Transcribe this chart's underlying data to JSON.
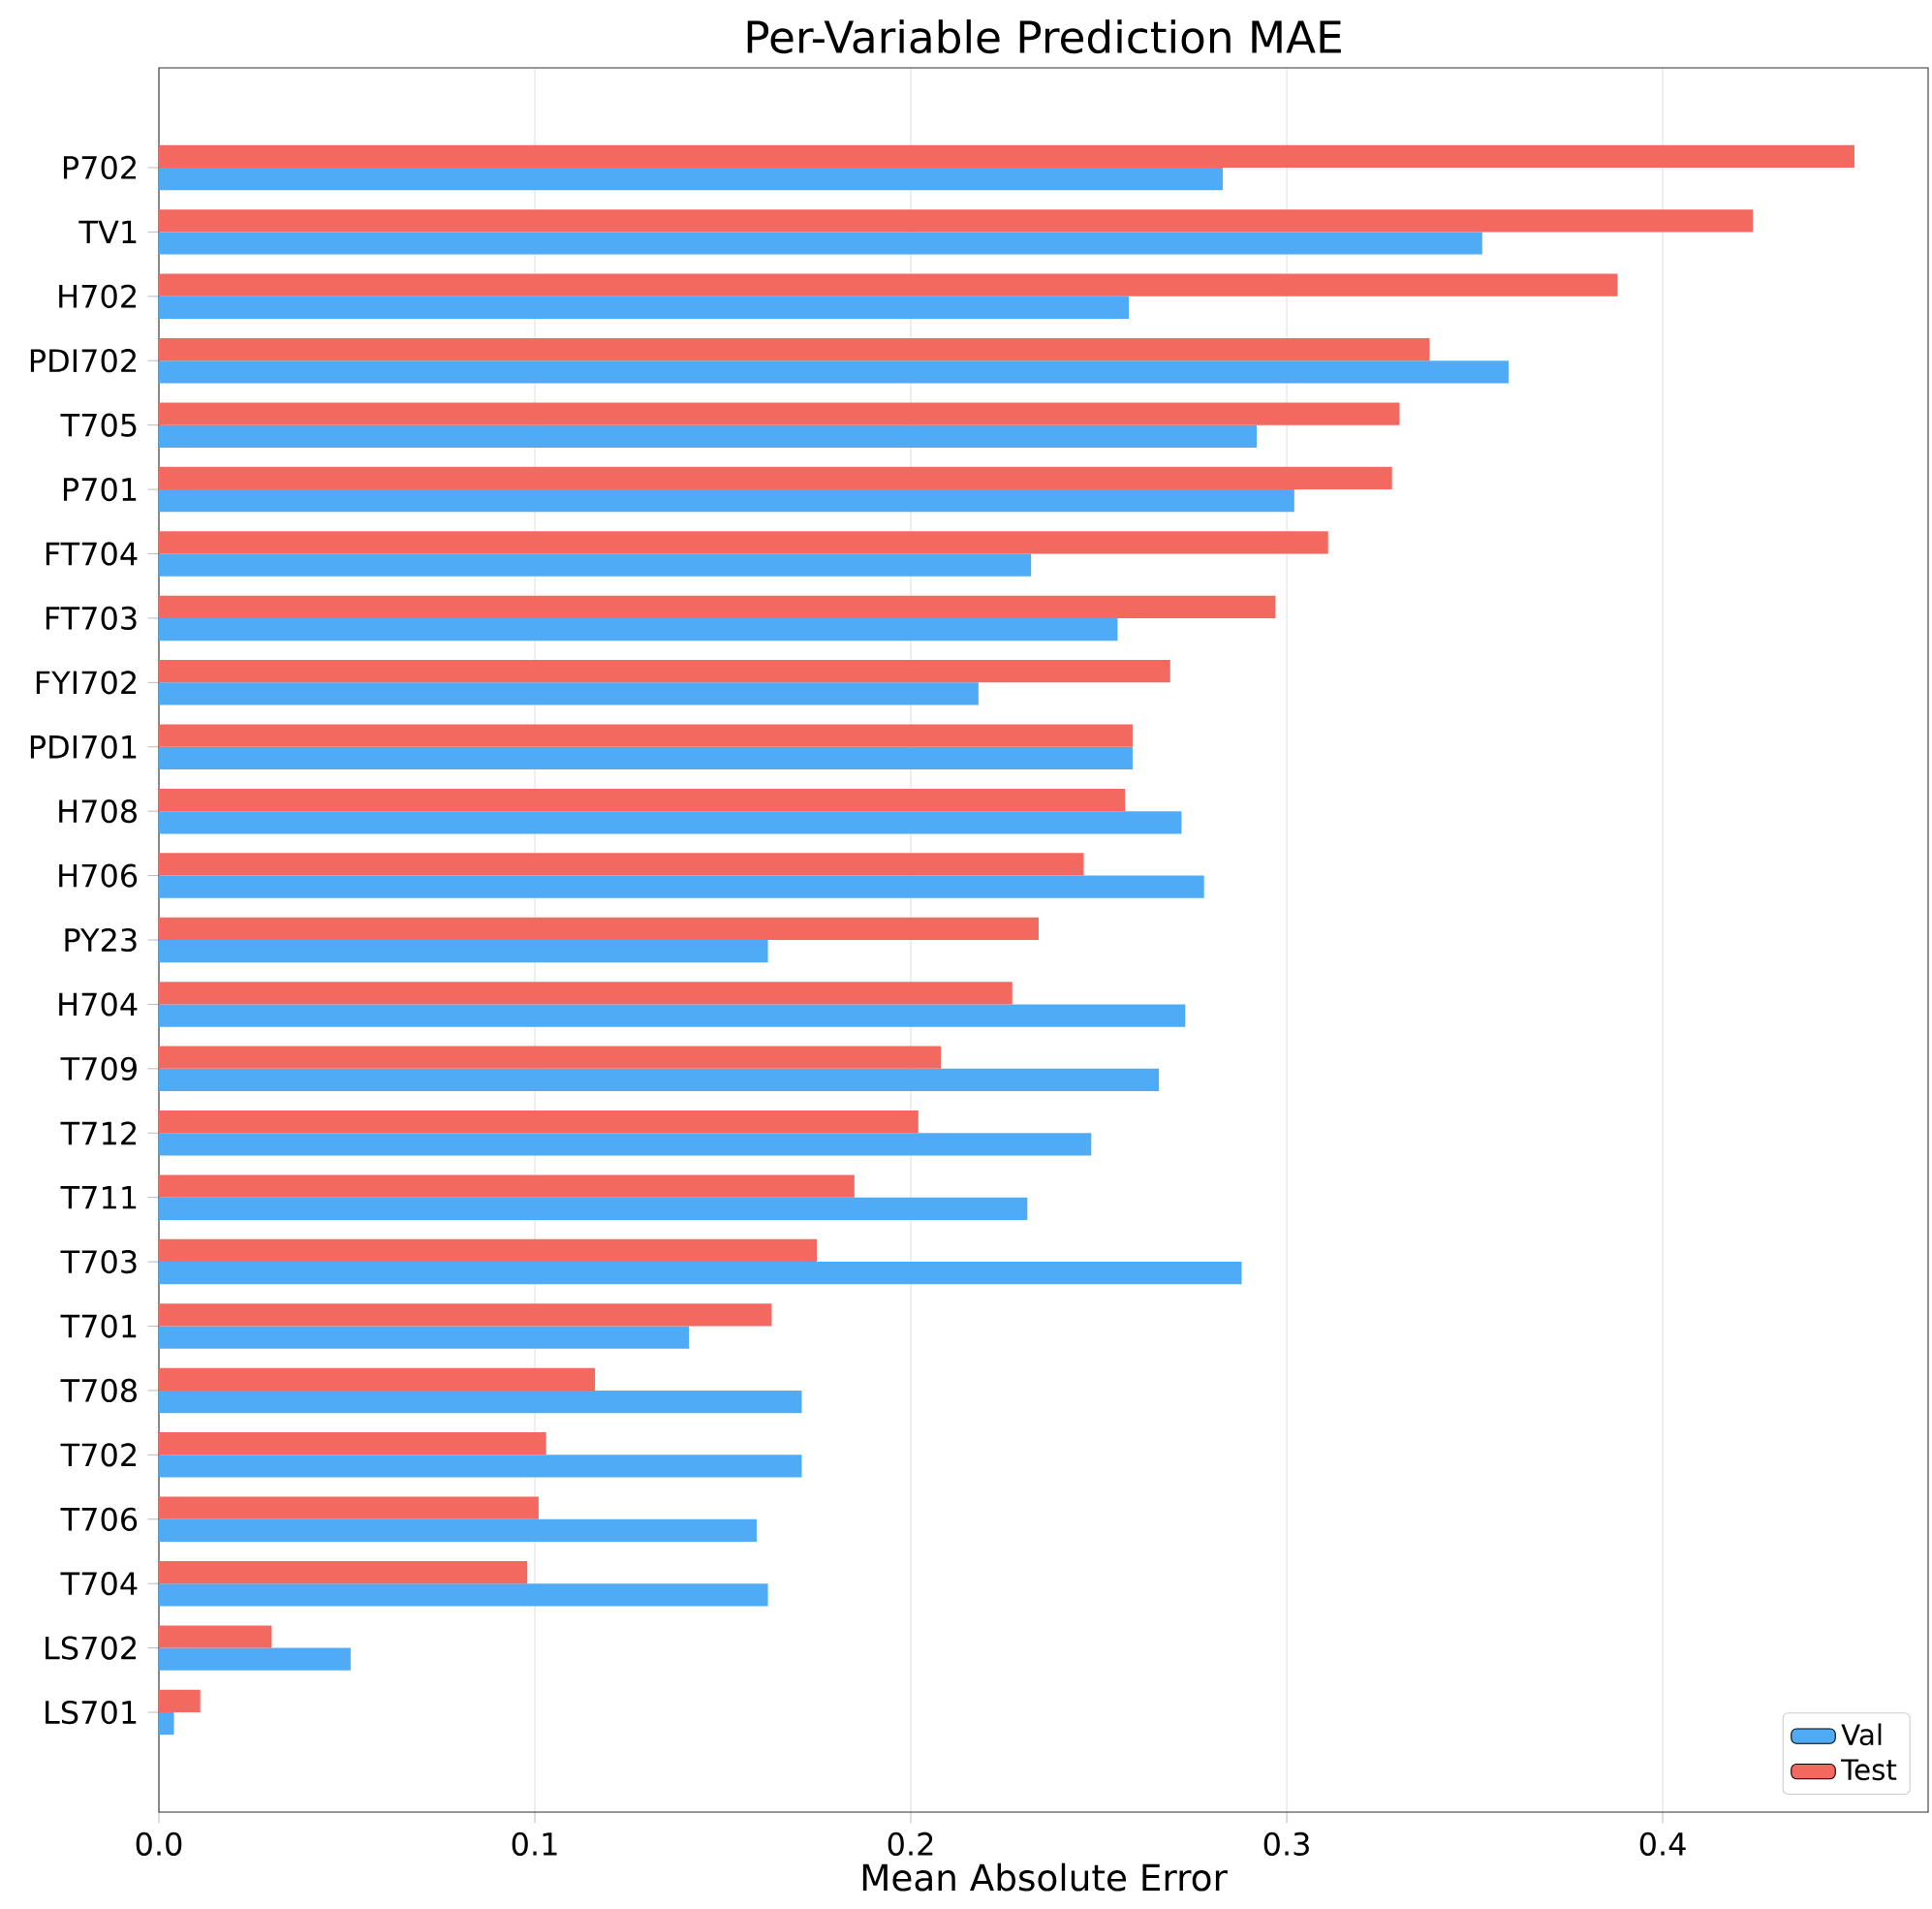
{
  "chart_data": {
    "type": "bar",
    "orientation": "horizontal",
    "title": "Per-Variable Prediction MAE",
    "xlabel": "Mean Absolute Error",
    "categories": [
      "P702",
      "TV1",
      "H702",
      "PDI702",
      "T705",
      "P701",
      "FT704",
      "FT703",
      "FYI702",
      "PDI701",
      "H708",
      "H706",
      "PY23",
      "H704",
      "T709",
      "T712",
      "T711",
      "T703",
      "T701",
      "T708",
      "T702",
      "T706",
      "T704",
      "LS702",
      "LS701"
    ],
    "series": [
      {
        "name": "Val",
        "color": "#4fabf5",
        "values": [
          0.283,
          0.352,
          0.258,
          0.359,
          0.292,
          0.302,
          0.232,
          0.255,
          0.218,
          0.259,
          0.272,
          0.278,
          0.162,
          0.273,
          0.266,
          0.248,
          0.231,
          0.288,
          0.141,
          0.171,
          0.171,
          0.159,
          0.162,
          0.051,
          0.004
        ]
      },
      {
        "name": "Test",
        "color": "#f4695f",
        "values": [
          0.451,
          0.424,
          0.388,
          0.338,
          0.33,
          0.328,
          0.311,
          0.297,
          0.269,
          0.259,
          0.257,
          0.246,
          0.234,
          0.227,
          0.208,
          0.202,
          0.185,
          0.175,
          0.163,
          0.116,
          0.103,
          0.101,
          0.098,
          0.03,
          0.011
        ]
      }
    ],
    "xlim": [
      0,
      0.4706
    ],
    "xticks": [
      {
        "value": 0,
        "label": "0.0"
      },
      0.1,
      0.2,
      0.3,
      0.4
    ],
    "grid": "x",
    "legend": "bottom right"
  }
}
